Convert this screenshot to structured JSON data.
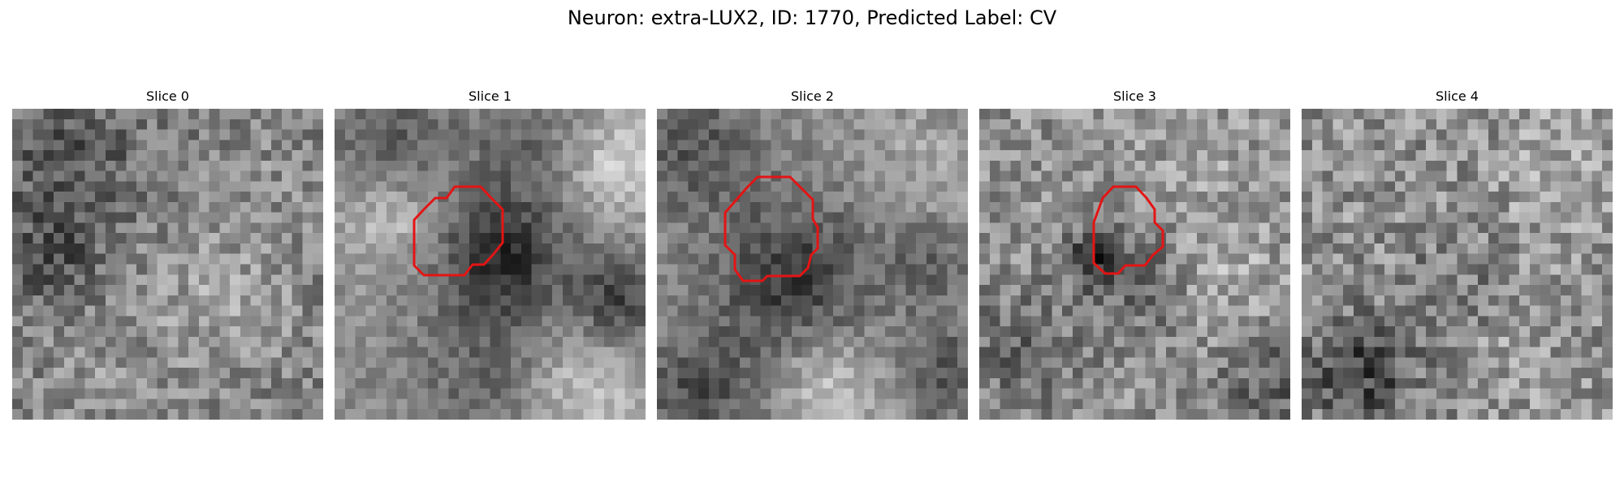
{
  "figure": {
    "title": "Neuron: extra-LUX2, ID: 1770, Predicted Label: CV"
  },
  "colormap": "gray",
  "outline_color": "#e41414",
  "slices": [
    {
      "label": "Slice 0",
      "has_outline": false
    },
    {
      "label": "Slice 1",
      "has_outline": true
    },
    {
      "label": "Slice 2",
      "has_outline": true
    },
    {
      "label": "Slice 3",
      "has_outline": true
    },
    {
      "label": "Slice 4",
      "has_outline": false
    }
  ]
}
